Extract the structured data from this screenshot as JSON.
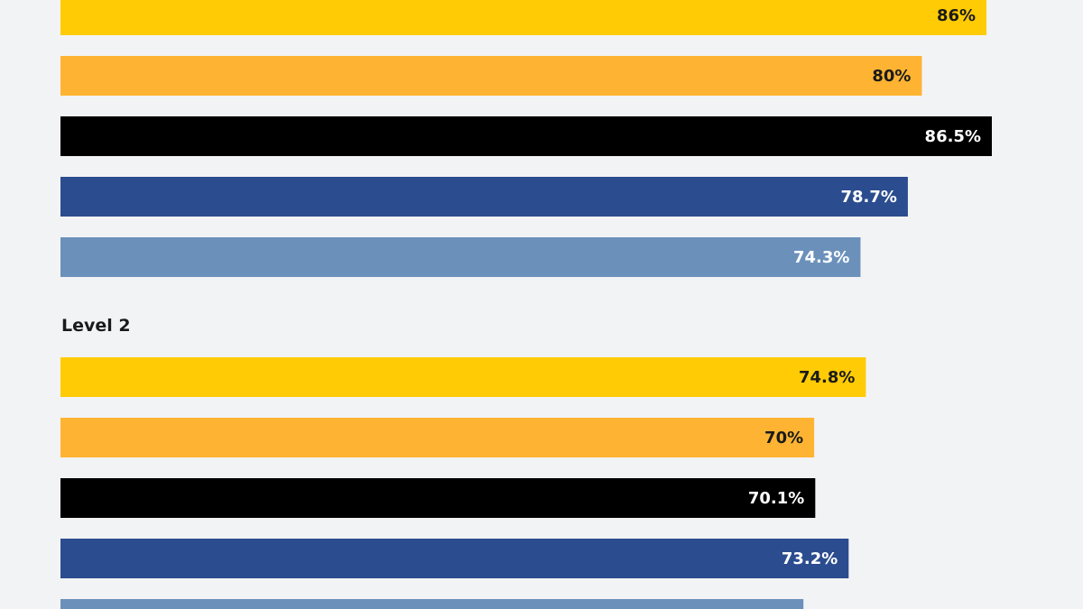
{
  "chart_data": {
    "type": "bar",
    "orientation": "horizontal",
    "xlim": [
      0,
      100
    ],
    "grid": false,
    "series_colors": [
      "#ffcb05",
      "#feb432",
      "#000000",
      "#2b4c8f",
      "#6b91bb"
    ],
    "label_colors": [
      "#1a1a1a",
      "#1a1a1a",
      "#ffffff",
      "#ffffff",
      "#ffffff"
    ],
    "groups": [
      {
        "label": "",
        "values": [
          86,
          80,
          86.5,
          78.7,
          74.3
        ],
        "value_labels": [
          "86%",
          "80%",
          "86.5%",
          "78.7%",
          "74.3%"
        ]
      },
      {
        "label": "Level 2",
        "values": [
          74.8,
          70,
          70.1,
          73.2,
          69
        ],
        "value_labels": [
          "74.8%",
          "70%",
          "70.1%",
          "73.2%",
          ""
        ]
      }
    ]
  }
}
